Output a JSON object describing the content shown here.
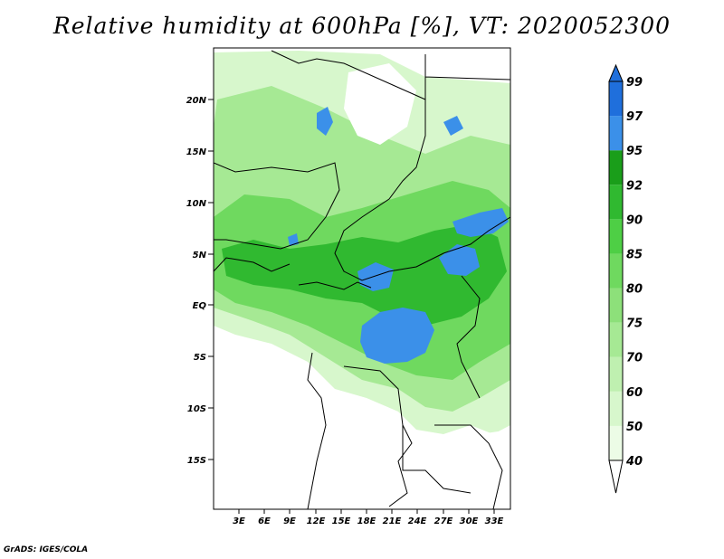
{
  "title": "Relative humidity at 600hPa [%], VT: 2020052300",
  "credit": "GrADS: IGES/COLA",
  "map": {
    "lat_labels": [
      "20N",
      "15N",
      "10N",
      "5N",
      "EQ",
      "5S",
      "10S",
      "15S"
    ],
    "lon_labels": [
      "3E",
      "6E",
      "9E",
      "12E",
      "15E",
      "18E",
      "21E",
      "24E",
      "27E",
      "30E",
      "33E"
    ]
  },
  "colorbar": {
    "levels": [
      "40",
      "50",
      "60",
      "70",
      "75",
      "80",
      "85",
      "90",
      "92",
      "95",
      "97",
      "99"
    ],
    "colors": [
      "#ecfce6",
      "#d7f7cc",
      "#bff0b0",
      "#a6e994",
      "#8de07a",
      "#6fd95f",
      "#4ecf45",
      "#30b930",
      "#1a9e1a",
      "#3b90e9",
      "#1f6fdc",
      "#1b4fc7"
    ],
    "under_color": "#ffffff",
    "over_color": "#1f6fdc"
  }
}
